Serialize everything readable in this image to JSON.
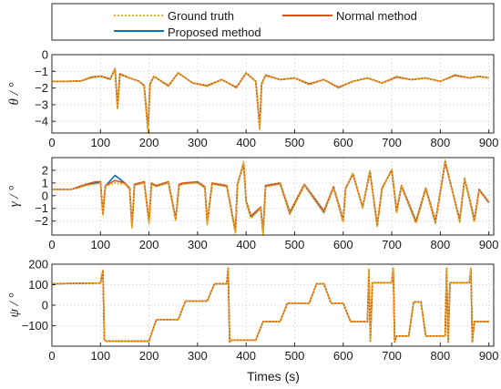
{
  "colors": {
    "ground_truth": "#EDB120",
    "normal": "#D95319",
    "proposed": "#0072BD"
  },
  "legend": {
    "ground_truth": "Ground truth",
    "normal": "Normal method",
    "proposed": "Proposed method"
  },
  "chart_data": [
    {
      "type": "line",
      "ylabel": "θ / °",
      "xlim": [
        0,
        910
      ],
      "ylim": [
        -4.7,
        0
      ],
      "xticks": [
        0,
        100,
        200,
        300,
        400,
        500,
        600,
        700,
        800,
        900
      ],
      "yticks": [
        -4,
        -3,
        -2,
        -1,
        0
      ],
      "grid": true,
      "series": [
        {
          "name": "Ground truth",
          "style": "dotted",
          "x": [
            0,
            30,
            60,
            80,
            100,
            120,
            130,
            135,
            140,
            160,
            180,
            190,
            198,
            202,
            210,
            240,
            260,
            290,
            320,
            350,
            380,
            400,
            420,
            428,
            432,
            440,
            470,
            500,
            530,
            560,
            590,
            620,
            650,
            680,
            710,
            740,
            770,
            800,
            830,
            860,
            880,
            900
          ],
          "y": [
            -1.6,
            -1.6,
            -1.58,
            -1.4,
            -1.3,
            -1.5,
            -0.8,
            -3.3,
            -1.2,
            -1.4,
            -1.6,
            -1.9,
            -4.7,
            -1.8,
            -1.3,
            -1.9,
            -1.1,
            -1.7,
            -1.9,
            -1.5,
            -2.0,
            -1.1,
            -1.6,
            -4.5,
            -1.8,
            -1.2,
            -1.5,
            -1.4,
            -1.8,
            -1.5,
            -2.0,
            -1.6,
            -1.4,
            -1.7,
            -1.3,
            -1.5,
            -1.4,
            -1.6,
            -1.2,
            -1.4,
            -1.3,
            -1.4
          ]
        },
        {
          "name": "Normal method",
          "style": "solid",
          "x": [
            0,
            30,
            60,
            80,
            100,
            120,
            130,
            135,
            140,
            160,
            180,
            190,
            198,
            202,
            210,
            240,
            260,
            290,
            320,
            350,
            380,
            400,
            420,
            428,
            432,
            440,
            470,
            500,
            530,
            560,
            590,
            620,
            650,
            680,
            710,
            740,
            770,
            800,
            830,
            860,
            880,
            900
          ],
          "y": [
            -1.6,
            -1.6,
            -1.58,
            -1.35,
            -1.28,
            -1.45,
            -0.85,
            -3.1,
            -1.15,
            -1.4,
            -1.6,
            -1.85,
            -4.5,
            -1.75,
            -1.3,
            -1.85,
            -1.1,
            -1.7,
            -1.85,
            -1.5,
            -1.95,
            -1.1,
            -1.6,
            -4.3,
            -1.75,
            -1.25,
            -1.5,
            -1.4,
            -1.75,
            -1.5,
            -1.95,
            -1.6,
            -1.4,
            -1.7,
            -1.35,
            -1.5,
            -1.4,
            -1.6,
            -1.25,
            -1.4,
            -1.3,
            -1.4
          ]
        },
        {
          "name": "Proposed method",
          "style": "solid",
          "x": [
            0,
            30,
            60,
            80,
            100,
            120,
            130,
            135,
            140,
            160,
            180,
            190,
            198,
            202,
            210,
            240,
            260,
            290,
            320,
            350,
            380,
            400,
            420,
            428,
            432,
            440,
            470,
            500,
            530,
            560,
            590,
            620,
            650,
            680,
            710,
            740,
            770,
            800,
            830,
            860,
            880,
            900
          ],
          "y": [
            -1.6,
            -1.6,
            -1.58,
            -1.38,
            -1.3,
            -1.48,
            -0.82,
            -3.2,
            -1.18,
            -1.4,
            -1.6,
            -1.88,
            -4.6,
            -1.78,
            -1.3,
            -1.88,
            -1.1,
            -1.7,
            -1.88,
            -1.5,
            -1.98,
            -1.1,
            -1.6,
            -4.4,
            -1.78,
            -1.22,
            -1.5,
            -1.4,
            -1.78,
            -1.5,
            -1.98,
            -1.6,
            -1.4,
            -1.7,
            -1.32,
            -1.5,
            -1.4,
            -1.6,
            -1.22,
            -1.4,
            -1.3,
            -1.4
          ]
        }
      ]
    },
    {
      "type": "line",
      "ylabel": "γ / °",
      "xlim": [
        0,
        910
      ],
      "ylim": [
        -3.1,
        3
      ],
      "xticks": [
        0,
        100,
        200,
        300,
        400,
        500,
        600,
        700,
        800,
        900
      ],
      "yticks": [
        -2,
        -1,
        0,
        1,
        2
      ],
      "grid": true,
      "series": [
        {
          "name": "Ground truth",
          "style": "dotted",
          "x": [
            0,
            40,
            55,
            70,
            90,
            100,
            105,
            110,
            130,
            150,
            160,
            165,
            170,
            190,
            200,
            205,
            215,
            240,
            255,
            262,
            270,
            300,
            315,
            320,
            330,
            360,
            378,
            382,
            395,
            400,
            410,
            430,
            435,
            440,
            470,
            490,
            520,
            560,
            580,
            600,
            605,
            620,
            640,
            655,
            670,
            680,
            700,
            710,
            720,
            750,
            770,
            790,
            810,
            840,
            850,
            860,
            870,
            880,
            900
          ],
          "y": [
            0.5,
            0.5,
            0.6,
            0.8,
            0.9,
            1.0,
            -1.6,
            0.7,
            1.0,
            0.9,
            0.5,
            -2.6,
            0.8,
            1.0,
            -2.2,
            0.9,
            0.7,
            1.0,
            -2.0,
            0.8,
            0.9,
            1.0,
            0.6,
            -2.3,
            0.9,
            0.7,
            -3.0,
            0.8,
            2.7,
            -0.5,
            -1.8,
            -1.0,
            -3.1,
            0.7,
            0.9,
            -1.5,
            0.8,
            -1.4,
            0.6,
            -2.1,
            0.5,
            1.8,
            -1.0,
            2.0,
            -2.5,
            0.5,
            2.1,
            -1.4,
            0.7,
            -2.2,
            0.5,
            -2.2,
            2.8,
            -2.1,
            1.4,
            -0.3,
            -2.1,
            0.4,
            -0.6
          ]
        },
        {
          "name": "Normal method",
          "style": "solid",
          "x": [
            0,
            40,
            55,
            70,
            90,
            100,
            105,
            110,
            130,
            150,
            160,
            165,
            170,
            190,
            200,
            205,
            215,
            240,
            255,
            262,
            270,
            300,
            315,
            320,
            330,
            360,
            378,
            382,
            395,
            400,
            410,
            430,
            435,
            440,
            470,
            490,
            520,
            560,
            580,
            600,
            605,
            620,
            640,
            655,
            670,
            680,
            700,
            710,
            720,
            750,
            770,
            790,
            810,
            840,
            850,
            860,
            870,
            880,
            900
          ],
          "y": [
            0.5,
            0.5,
            0.7,
            0.9,
            1.1,
            1.1,
            -1.4,
            0.8,
            1.2,
            1.0,
            0.6,
            -2.4,
            0.9,
            1.1,
            -2.0,
            1.0,
            0.8,
            1.1,
            -1.8,
            0.9,
            1.0,
            1.1,
            0.7,
            -2.1,
            1.0,
            0.8,
            -2.8,
            0.9,
            2.5,
            -0.4,
            -1.6,
            -0.9,
            -2.9,
            0.8,
            1.0,
            -1.3,
            0.9,
            -1.2,
            0.7,
            -1.9,
            0.6,
            1.7,
            -0.9,
            1.9,
            -2.3,
            0.6,
            2.0,
            -1.2,
            0.8,
            -2.0,
            0.6,
            -2.0,
            2.6,
            -1.9,
            1.3,
            -0.2,
            -1.9,
            0.5,
            -0.5
          ]
        },
        {
          "name": "Proposed method",
          "style": "solid",
          "x": [
            0,
            40,
            55,
            70,
            90,
            100,
            105,
            110,
            130,
            150,
            160,
            165,
            170,
            190,
            200,
            205,
            215,
            240,
            255,
            262,
            270,
            300,
            315,
            320,
            330,
            360,
            378,
            382,
            395,
            400,
            410,
            430,
            435,
            440,
            470,
            490,
            520,
            560,
            580,
            600,
            605,
            620,
            640,
            655,
            670,
            680,
            700,
            710,
            720,
            750,
            770,
            790,
            810,
            840,
            850,
            860,
            870,
            880,
            900
          ],
          "y": [
            0.5,
            0.5,
            0.65,
            0.85,
            1.0,
            1.05,
            -1.5,
            0.75,
            1.6,
            1.0,
            0.55,
            -2.5,
            0.85,
            1.05,
            -2.1,
            0.95,
            0.75,
            1.05,
            -1.9,
            0.85,
            0.95,
            1.05,
            0.65,
            -2.2,
            0.95,
            0.75,
            -2.9,
            0.85,
            2.6,
            -0.45,
            -1.7,
            -0.95,
            -3.0,
            0.75,
            0.95,
            -1.4,
            0.85,
            -1.3,
            0.65,
            -2.0,
            0.55,
            1.75,
            -0.95,
            1.95,
            -2.4,
            0.55,
            2.05,
            -1.3,
            0.75,
            -2.1,
            0.55,
            -2.1,
            2.7,
            -2.0,
            1.35,
            -0.25,
            -2.0,
            0.45,
            -0.55
          ]
        }
      ]
    },
    {
      "type": "line",
      "ylabel": "ψ / °",
      "xlim": [
        0,
        910
      ],
      "ylim": [
        -200,
        200
      ],
      "xticks": [
        0,
        100,
        200,
        300,
        400,
        500,
        600,
        700,
        800,
        900
      ],
      "yticks": [
        -100,
        0,
        100,
        200
      ],
      "grid": true,
      "xlabel": "Times (s)",
      "series": [
        {
          "name": "Ground truth",
          "style": "dotted",
          "x": [
            0,
            100,
            105,
            108,
            112,
            200,
            215,
            260,
            275,
            320,
            335,
            360,
            363,
            366,
            370,
            420,
            435,
            470,
            485,
            530,
            545,
            560,
            575,
            600,
            615,
            650,
            653,
            656,
            660,
            700,
            703,
            706,
            710,
            735,
            745,
            760,
            770,
            810,
            813,
            816,
            820,
            860,
            863,
            866,
            870,
            900
          ],
          "y": [
            105,
            108,
            170,
            -170,
            -175,
            -175,
            -70,
            -70,
            20,
            20,
            105,
            105,
            180,
            -180,
            -170,
            -170,
            -80,
            -80,
            10,
            10,
            105,
            105,
            10,
            10,
            -80,
            -80,
            175,
            -175,
            110,
            110,
            180,
            -180,
            -150,
            -150,
            15,
            15,
            -150,
            -150,
            180,
            -180,
            110,
            110,
            180,
            -180,
            -80,
            -80
          ]
        },
        {
          "name": "Normal method",
          "style": "solid",
          "x": [
            0,
            100,
            105,
            108,
            112,
            200,
            215,
            260,
            275,
            320,
            335,
            360,
            363,
            366,
            370,
            420,
            435,
            470,
            485,
            530,
            545,
            560,
            575,
            600,
            615,
            650,
            653,
            656,
            660,
            700,
            703,
            706,
            710,
            735,
            745,
            760,
            770,
            810,
            813,
            816,
            820,
            860,
            863,
            866,
            870,
            900
          ],
          "y": [
            105,
            108,
            170,
            -170,
            -175,
            -175,
            -70,
            -70,
            20,
            20,
            105,
            105,
            180,
            -180,
            -170,
            -170,
            -80,
            -80,
            10,
            10,
            105,
            105,
            10,
            10,
            -80,
            -80,
            175,
            -175,
            110,
            110,
            180,
            -180,
            -150,
            -150,
            15,
            15,
            -150,
            -150,
            180,
            -180,
            110,
            110,
            180,
            -180,
            -80,
            -80
          ]
        },
        {
          "name": "Proposed method",
          "style": "solid",
          "x": [
            0,
            100,
            105,
            108,
            112,
            200,
            215,
            260,
            275,
            320,
            335,
            360,
            363,
            366,
            370,
            420,
            435,
            470,
            485,
            530,
            545,
            560,
            575,
            600,
            615,
            650,
            653,
            656,
            660,
            700,
            703,
            706,
            710,
            735,
            745,
            760,
            770,
            810,
            813,
            816,
            820,
            860,
            863,
            866,
            870,
            900
          ],
          "y": [
            105,
            108,
            170,
            -170,
            -175,
            -175,
            -70,
            -70,
            20,
            20,
            105,
            105,
            180,
            -180,
            -170,
            -170,
            -80,
            -80,
            10,
            10,
            105,
            105,
            10,
            10,
            -80,
            -80,
            175,
            -175,
            110,
            110,
            180,
            -180,
            -150,
            -150,
            15,
            15,
            -150,
            -150,
            180,
            -180,
            110,
            110,
            180,
            -180,
            -80,
            -80
          ]
        }
      ]
    }
  ]
}
